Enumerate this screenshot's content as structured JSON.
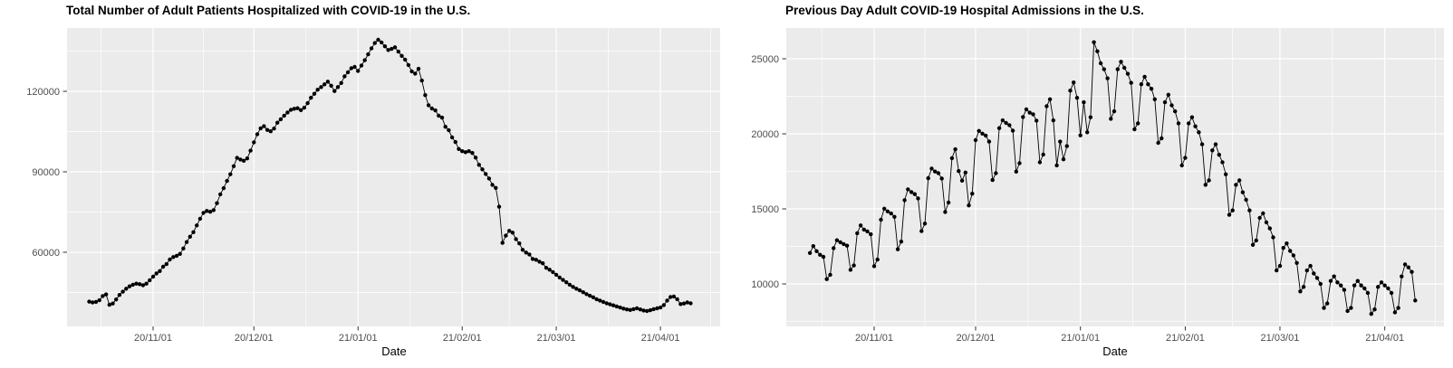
{
  "figure": {
    "background_color": "#FFFFFF",
    "theme": {
      "panel_background": "#EBEBEB",
      "grid_color": "#FFFFFF",
      "point_color": "#000000",
      "line_color": "#000000",
      "tick_mark_color": "#333333",
      "tick_label_color": "#4D4D4D",
      "title_color": "#000000"
    }
  },
  "chart_data": [
    {
      "type": "line",
      "title": "Total Number of Adult Patients Hospitalized with COVID-19 in the U.S.",
      "xlabel": "Date",
      "legend": "none",
      "grid": "on",
      "start_date": "2020-10-13",
      "frequency": "daily",
      "ylim": [
        32900,
        144300
      ],
      "y_ticks": [
        {
          "label": "60000",
          "value": 60000
        },
        {
          "label": "90000",
          "value": 90000
        },
        {
          "label": "120000",
          "value": 120000
        }
      ],
      "y_minor": [
        45000,
        75000,
        105000,
        135000
      ],
      "x_ticks": [
        {
          "label": "20/11/01",
          "day_index": 19
        },
        {
          "label": "20/12/01",
          "day_index": 49
        },
        {
          "label": "21/01/01",
          "day_index": 80
        },
        {
          "label": "21/02/01",
          "day_index": 111
        },
        {
          "label": "21/03/01",
          "day_index": 139
        },
        {
          "label": "21/04/01",
          "day_index": 170
        }
      ],
      "x_minor_day_indices": [
        3.5,
        34,
        64.5,
        95.5,
        125,
        154.5,
        185
      ],
      "values": [
        41600,
        41300,
        41500,
        42100,
        43700,
        44300,
        40400,
        40900,
        42400,
        44100,
        45300,
        46400,
        47300,
        47900,
        48300,
        48100,
        47700,
        48300,
        49600,
        50900,
        52100,
        53000,
        54600,
        55600,
        57300,
        58200,
        58700,
        59400,
        61400,
        63800,
        65800,
        67500,
        70000,
        72500,
        74700,
        75400,
        75100,
        75700,
        78300,
        81600,
        83900,
        86600,
        89100,
        92100,
        95200,
        94600,
        94100,
        95000,
        97900,
        101000,
        104000,
        106200,
        107000,
        105600,
        105100,
        106100,
        108300,
        109600,
        110900,
        112100,
        113100,
        113500,
        113700,
        113000,
        113900,
        115600,
        117600,
        119100,
        120600,
        121600,
        122600,
        123600,
        122100,
        120100,
        121600,
        123100,
        125600,
        127100,
        128600,
        129100,
        127600,
        129600,
        131600,
        133800,
        136000,
        138000,
        139200,
        138200,
        136800,
        135400,
        135800,
        136400,
        134800,
        133200,
        131800,
        129800,
        127400,
        126600,
        128400,
        124000,
        118600,
        114800,
        113600,
        112900,
        110900,
        110200,
        106800,
        105500,
        102800,
        101100,
        98500,
        97700,
        97300,
        97700,
        97000,
        95300,
        92600,
        90900,
        89200,
        87500,
        85100,
        84000,
        77000,
        63500,
        66200,
        68000,
        67300,
        64900,
        63300,
        60900,
        59900,
        59200,
        57500,
        57200,
        56500,
        55900,
        54200,
        53500,
        52600,
        51600,
        50600,
        49700,
        48800,
        47900,
        47100,
        46400,
        45800,
        45100,
        44400,
        43800,
        43200,
        42500,
        42000,
        41500,
        41000,
        40600,
        40200,
        39800,
        39400,
        39000,
        38700,
        38500,
        38800,
        39100,
        38700,
        38300,
        38100,
        38400,
        38800,
        39100,
        39400,
        40300,
        42000,
        43300,
        43500,
        42500,
        40700,
        40900,
        41300,
        41000
      ]
    },
    {
      "type": "line",
      "title": "Previous Day Adult COVID-19 Hospital Admissions in the U.S.",
      "xlabel": "Date",
      "legend": "none",
      "grid": "on",
      "start_date": "2020-10-13",
      "frequency": "daily",
      "ylim": [
        7100,
        27000
      ],
      "y_ticks": [
        {
          "label": "10000",
          "value": 10000
        },
        {
          "label": "15000",
          "value": 15000
        },
        {
          "label": "20000",
          "value": 20000
        },
        {
          "label": "25000",
          "value": 25000
        }
      ],
      "y_minor": [
        7500,
        12500,
        17500,
        22500
      ],
      "x_ticks": [
        {
          "label": "20/11/01",
          "day_index": 19
        },
        {
          "label": "20/12/01",
          "day_index": 49
        },
        {
          "label": "21/01/01",
          "day_index": 80
        },
        {
          "label": "21/02/01",
          "day_index": 111
        },
        {
          "label": "21/03/01",
          "day_index": 139
        },
        {
          "label": "21/04/01",
          "day_index": 170
        }
      ],
      "x_minor_day_indices": [
        3.5,
        34,
        64.5,
        95.5,
        125,
        154.5,
        185
      ],
      "values": [
        12060,
        12520,
        12180,
        11940,
        11800,
        10320,
        10610,
        12380,
        12910,
        12780,
        12650,
        12550,
        10940,
        11230,
        13380,
        13900,
        13620,
        13500,
        13310,
        11180,
        11620,
        14280,
        15010,
        14830,
        14690,
        14470,
        12310,
        12820,
        15580,
        16300,
        16120,
        15980,
        15690,
        13520,
        14020,
        17040,
        17680,
        17490,
        17380,
        17020,
        14790,
        15420,
        18380,
        18970,
        17520,
        16880,
        17420,
        15230,
        16010,
        19580,
        20190,
        20010,
        19880,
        19480,
        16920,
        17380,
        20380,
        20900,
        20720,
        20580,
        20210,
        17480,
        18040,
        21120,
        21630,
        21410,
        21300,
        20880,
        18100,
        18620,
        21840,
        22300,
        20900,
        17900,
        19480,
        18300,
        19180,
        22880,
        23420,
        22400,
        19900,
        22100,
        20100,
        21100,
        26100,
        25500,
        24700,
        24300,
        23700,
        21000,
        21500,
        24300,
        24800,
        24400,
        24000,
        23400,
        20300,
        20700,
        23300,
        23800,
        23300,
        23000,
        22300,
        19400,
        19700,
        22100,
        22600,
        21900,
        21500,
        20700,
        17900,
        18400,
        20700,
        21100,
        20500,
        20100,
        19300,
        16600,
        16900,
        18900,
        19300,
        18600,
        18100,
        17300,
        14600,
        14900,
        16600,
        16900,
        16100,
        15600,
        14900,
        12600,
        12900,
        14400,
        14700,
        14100,
        13700,
        13100,
        10900,
        11200,
        12400,
        12700,
        12200,
        11900,
        11400,
        9500,
        9800,
        10900,
        11200,
        10700,
        10400,
        10000,
        8400,
        8700,
        10200,
        10500,
        10100,
        9900,
        9600,
        8200,
        8400,
        9900,
        10200,
        9900,
        9700,
        9400,
        8000,
        8300,
        9800,
        10100,
        9900,
        9700,
        9400,
        8100,
        8400,
        10500,
        11300,
        11100,
        10800,
        8900
      ]
    }
  ]
}
